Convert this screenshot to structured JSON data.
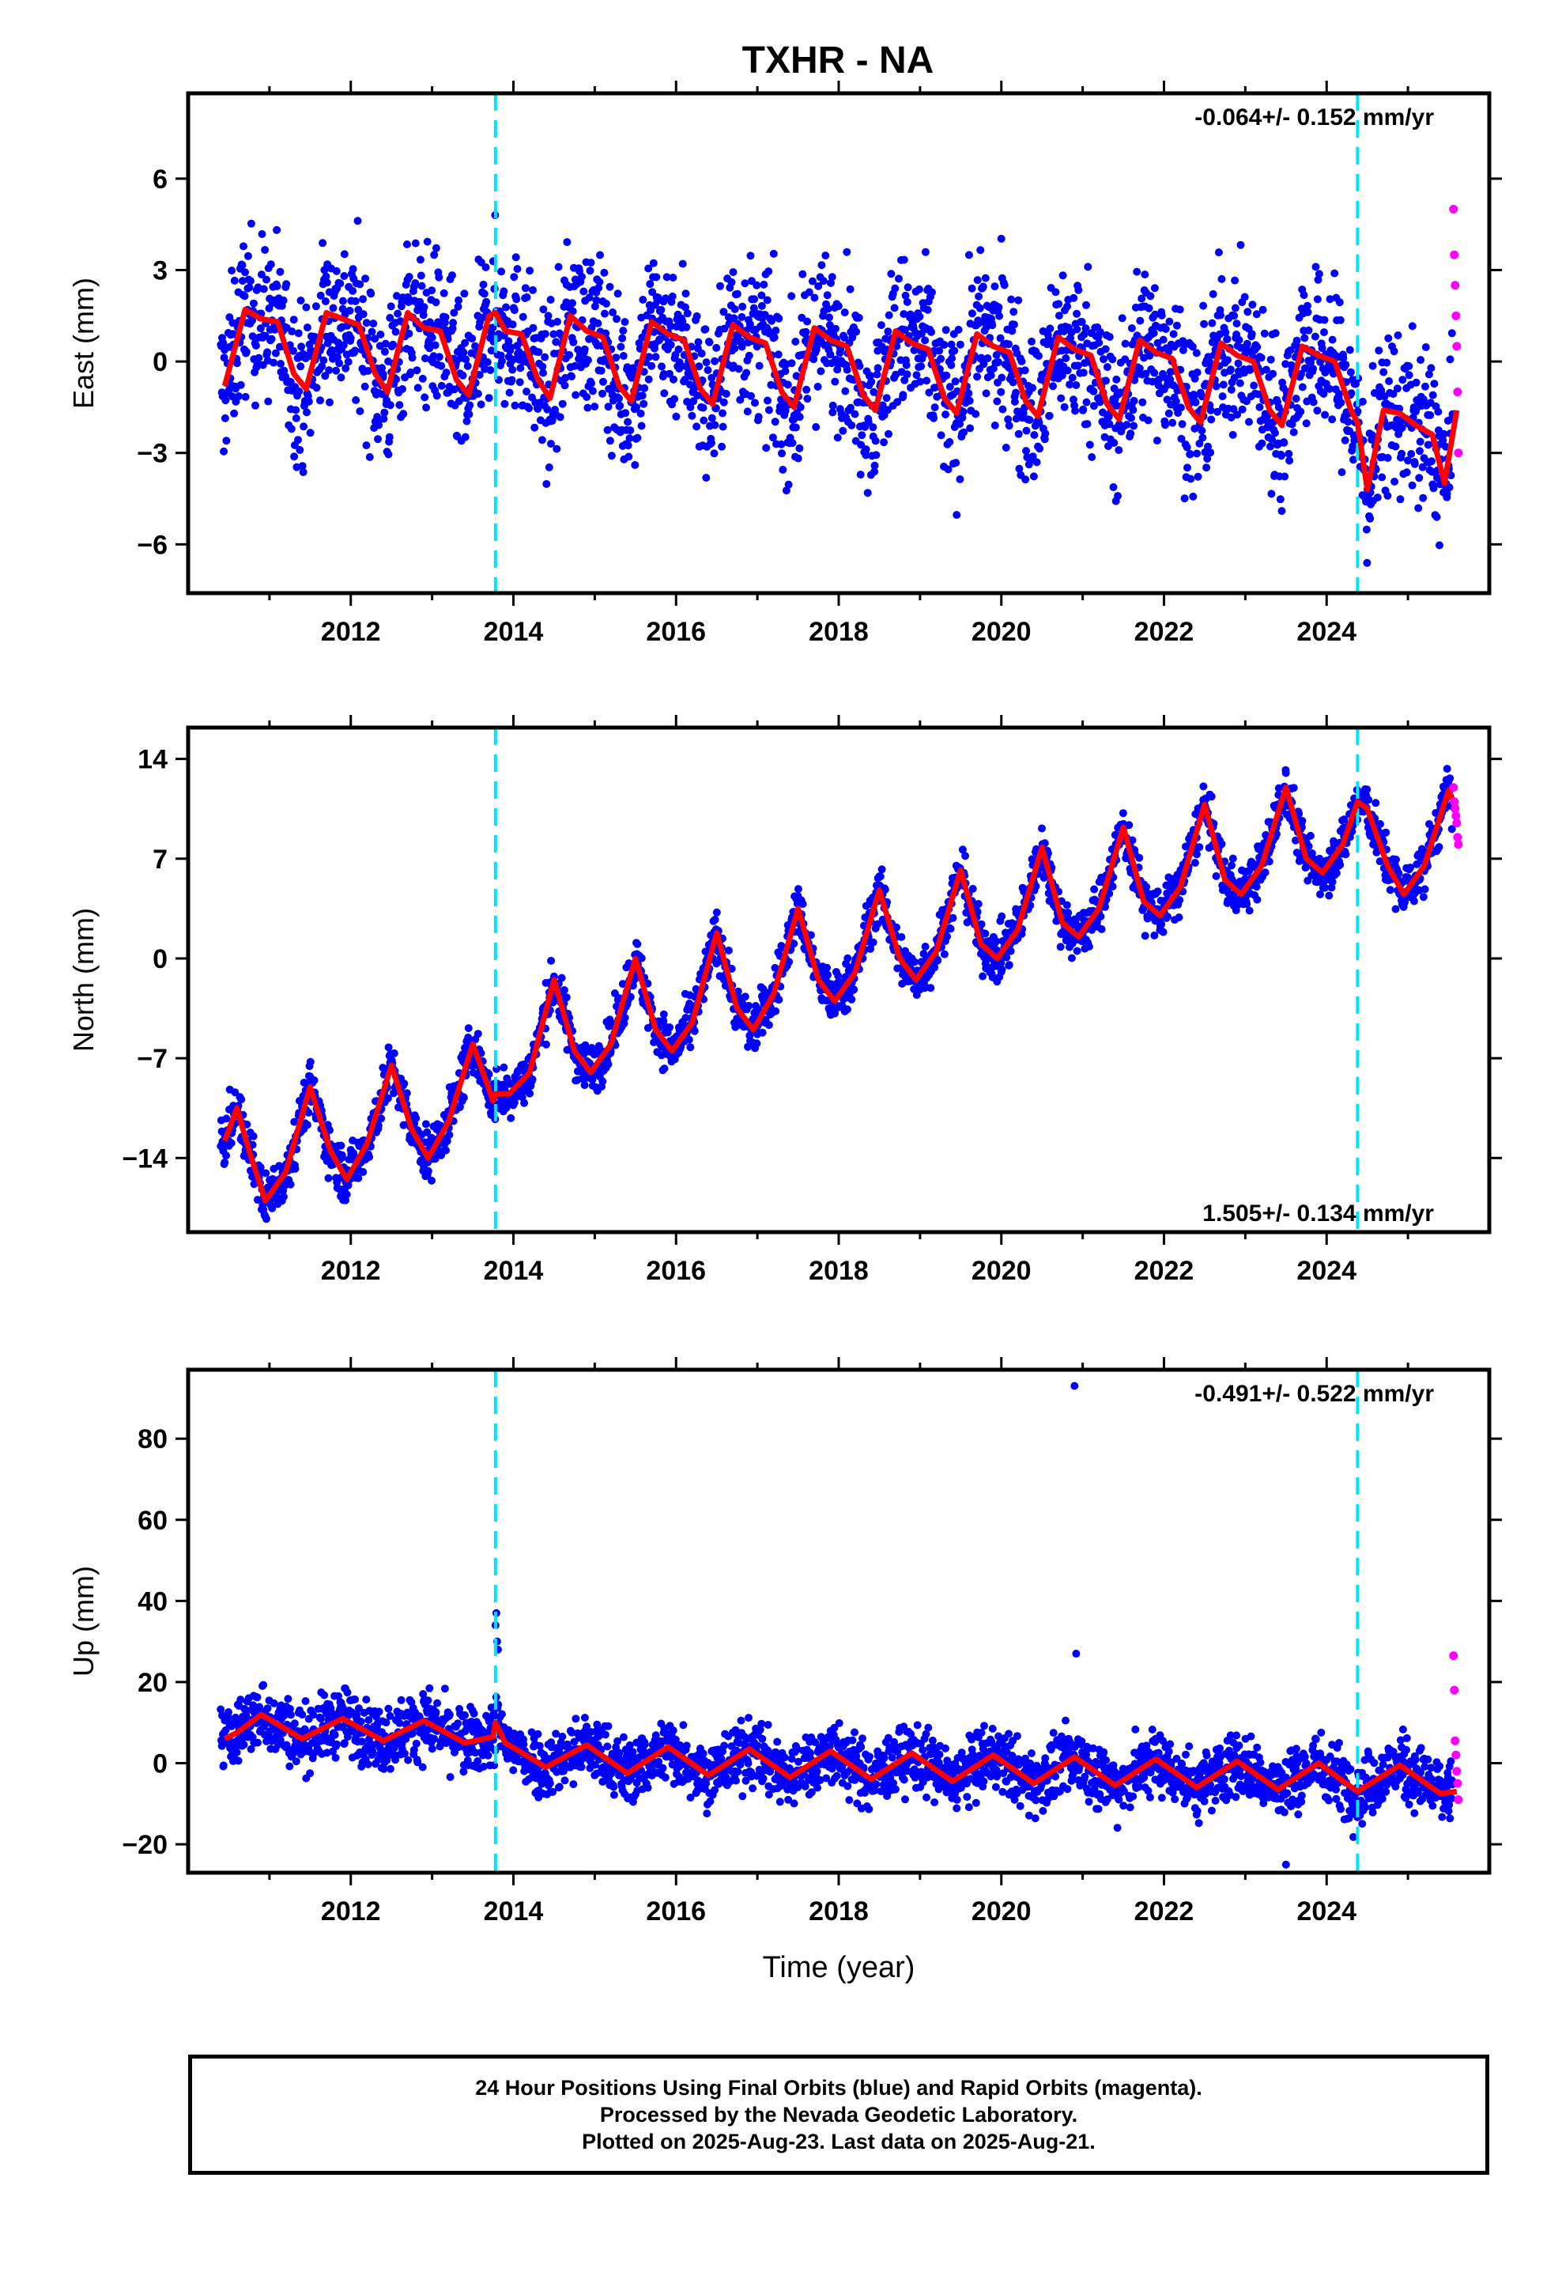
{
  "title": "TXHR - NA",
  "colors": {
    "final_points": "#0000ff",
    "rapid_points": "#ff00ff",
    "model": "#ff0000",
    "event_lines": "#00e5ff",
    "axes": "#000000"
  },
  "footer": {
    "line1": "24 Hour Positions Using Final Orbits (blue) and Rapid Orbits (magenta).",
    "line2": "Processed by the Nevada Geodetic Laboratory.",
    "line3": "Plotted on 2025-Aug-23. Last data on 2025-Aug-21."
  },
  "chart_data": [
    {
      "type": "scatter",
      "component": "East",
      "ylabel": "East (mm)",
      "xlabel": "",
      "xlim": [
        2010.0,
        2026.0
      ],
      "ylim": [
        -7.6,
        8.8
      ],
      "yticks": [
        -6,
        -3,
        0,
        3,
        6
      ],
      "yticklabels": [
        "−6",
        "−3",
        "0",
        "3",
        "6"
      ],
      "xticks": [
        2012,
        2014,
        2016,
        2018,
        2020,
        2022,
        2024
      ],
      "xticklabels": [
        "2012",
        "2014",
        "2016",
        "2018",
        "2020",
        "2022",
        "2024"
      ],
      "rate_label": "-0.064+/- 0.152 mm/yr",
      "rate_label_position": "top-right",
      "event_lines": [
        2013.78,
        2024.38
      ],
      "series": [
        {
          "kind": "model",
          "x": [
            2010.45,
            2010.7,
            2010.9,
            2011.1,
            2011.3,
            2011.45,
            2011.7,
            2011.9,
            2012.1,
            2012.3,
            2012.45,
            2012.7,
            2012.9,
            2013.1,
            2013.3,
            2013.45,
            2013.7,
            2013.78,
            2013.9,
            2014.1,
            2014.3,
            2014.45,
            2014.7,
            2014.9,
            2015.1,
            2015.3,
            2015.45,
            2015.7,
            2015.9,
            2016.1,
            2016.3,
            2016.45,
            2016.7,
            2016.9,
            2017.1,
            2017.3,
            2017.45,
            2017.7,
            2017.9,
            2018.1,
            2018.3,
            2018.45,
            2018.7,
            2018.9,
            2019.1,
            2019.3,
            2019.45,
            2019.7,
            2019.9,
            2020.1,
            2020.3,
            2020.45,
            2020.7,
            2020.9,
            2021.1,
            2021.3,
            2021.45,
            2021.7,
            2021.9,
            2022.1,
            2022.3,
            2022.45,
            2022.7,
            2022.9,
            2023.1,
            2023.3,
            2023.45,
            2023.7,
            2023.9,
            2024.1,
            2024.3,
            2024.38,
            2024.5,
            2024.7,
            2024.9,
            2025.1,
            2025.3,
            2025.45,
            2025.6
          ],
          "y": [
            -0.8,
            1.7,
            1.4,
            1.3,
            -0.4,
            -0.9,
            1.6,
            1.4,
            1.2,
            -0.4,
            -1.0,
            1.6,
            1.1,
            1.0,
            -0.6,
            -1.1,
            1.5,
            1.6,
            1.0,
            0.9,
            -0.6,
            -1.2,
            1.5,
            1.0,
            0.8,
            -0.8,
            -1.3,
            1.3,
            0.9,
            0.7,
            -0.9,
            -1.4,
            1.2,
            0.8,
            0.6,
            -1.0,
            -1.5,
            1.1,
            0.7,
            0.5,
            -1.1,
            -1.6,
            1.0,
            0.6,
            0.4,
            -1.2,
            -1.7,
            0.9,
            0.5,
            0.3,
            -1.3,
            -1.8,
            0.8,
            0.4,
            0.2,
            -1.4,
            -1.9,
            0.7,
            0.3,
            0.1,
            -1.5,
            -2.0,
            0.6,
            0.2,
            0.0,
            -1.6,
            -2.1,
            0.5,
            0.2,
            0.0,
            -1.6,
            -2.0,
            -4.2,
            -1.6,
            -1.7,
            -2.1,
            -2.4,
            -4.0,
            -1.6
          ]
        },
        {
          "kind": "final_orbit_points",
          "description_free": true,
          "x_range": [
            2010.4,
            2025.55
          ],
          "noise_mm": 1.3
        },
        {
          "kind": "rapid_orbit_points",
          "x": [
            2025.56,
            2025.57,
            2025.58,
            2025.59,
            2025.6,
            2025.61,
            2025.62
          ],
          "y": [
            5.0,
            3.5,
            2.5,
            1.5,
            0.5,
            -1.0,
            -3.0
          ]
        }
      ]
    },
    {
      "type": "scatter",
      "component": "North",
      "ylabel": "North (mm)",
      "xlabel": "",
      "xlim": [
        2010.0,
        2026.0
      ],
      "ylim": [
        -19.2,
        16.2
      ],
      "yticks": [
        -14,
        -7,
        0,
        7,
        14
      ],
      "yticklabels": [
        "−14",
        "−7",
        "0",
        "7",
        "14"
      ],
      "xticks": [
        2012,
        2014,
        2016,
        2018,
        2020,
        2022,
        2024
      ],
      "xticklabels": [
        "2012",
        "2014",
        "2016",
        "2018",
        "2020",
        "2022",
        "2024"
      ],
      "rate_label": "1.505+/- 0.134 mm/yr",
      "rate_label_position": "bottom-right",
      "event_lines": [
        2013.78,
        2024.38
      ],
      "series": [
        {
          "kind": "model",
          "x": [
            2010.45,
            2010.6,
            2010.75,
            2010.95,
            2011.2,
            2011.5,
            2011.75,
            2011.95,
            2012.2,
            2012.5,
            2012.75,
            2012.95,
            2013.2,
            2013.5,
            2013.75,
            2013.78,
            2013.95,
            2014.2,
            2014.5,
            2014.75,
            2014.95,
            2015.2,
            2015.5,
            2015.75,
            2015.95,
            2016.2,
            2016.5,
            2016.75,
            2016.95,
            2017.2,
            2017.5,
            2017.75,
            2017.95,
            2018.2,
            2018.5,
            2018.75,
            2018.95,
            2019.2,
            2019.5,
            2019.75,
            2019.95,
            2020.2,
            2020.5,
            2020.75,
            2020.95,
            2021.2,
            2021.5,
            2021.75,
            2021.95,
            2022.2,
            2022.5,
            2022.75,
            2022.95,
            2023.2,
            2023.5,
            2023.75,
            2023.95,
            2024.2,
            2024.38,
            2024.5,
            2024.75,
            2024.95,
            2025.2,
            2025.5,
            2025.6
          ],
          "y": [
            -12.8,
            -10.5,
            -13.5,
            -17.0,
            -15.0,
            -9.0,
            -13.5,
            -15.5,
            -13.0,
            -7.5,
            -12.0,
            -14.0,
            -11.5,
            -6.0,
            -10.0,
            -9.5,
            -9.5,
            -8.0,
            -1.5,
            -6.5,
            -8.0,
            -6.0,
            0.0,
            -5.0,
            -6.5,
            -4.5,
            1.8,
            -3.5,
            -5.0,
            -2.5,
            3.5,
            -1.5,
            -3.0,
            -1.0,
            4.8,
            0.0,
            -1.5,
            0.5,
            6.2,
            1.0,
            0.0,
            2.0,
            7.8,
            2.5,
            1.5,
            3.5,
            9.2,
            4.0,
            3.0,
            5.0,
            10.8,
            5.5,
            4.5,
            6.5,
            12.0,
            7.0,
            6.0,
            8.0,
            11.0,
            10.5,
            6.5,
            4.5,
            6.5,
            11.8,
            10.5
          ]
        },
        {
          "kind": "final_orbit_points",
          "x_range": [
            2010.4,
            2025.55
          ],
          "noise_mm": 0.9
        },
        {
          "kind": "rapid_orbit_points",
          "x": [
            2025.56,
            2025.57,
            2025.58,
            2025.59,
            2025.6,
            2025.61,
            2025.62
          ],
          "y": [
            12.0,
            11.0,
            10.5,
            10.0,
            9.5,
            8.5,
            8.0
          ]
        }
      ]
    },
    {
      "type": "scatter",
      "component": "Up",
      "ylabel": "Up (mm)",
      "xlabel": "Time (year)",
      "xlim": [
        2010.0,
        2026.0
      ],
      "ylim": [
        -27,
        97
      ],
      "yticks": [
        -20,
        0,
        20,
        40,
        60,
        80
      ],
      "yticklabels": [
        "−20",
        "0",
        "20",
        "40",
        "60",
        "80"
      ],
      "xticks": [
        2012,
        2014,
        2016,
        2018,
        2020,
        2022,
        2024
      ],
      "xticklabels": [
        "2012",
        "2014",
        "2016",
        "2018",
        "2020",
        "2022",
        "2024"
      ],
      "rate_label": "-0.491+/- 0.522 mm/yr",
      "rate_label_position": "top-right",
      "event_lines": [
        2013.78,
        2024.38
      ],
      "series": [
        {
          "kind": "model",
          "x": [
            2010.45,
            2010.6,
            2010.9,
            2011.4,
            2011.9,
            2012.4,
            2012.9,
            2013.4,
            2013.75,
            2013.78,
            2013.9,
            2014.4,
            2014.9,
            2015.4,
            2015.9,
            2016.4,
            2016.9,
            2017.4,
            2017.9,
            2018.4,
            2018.9,
            2019.4,
            2019.9,
            2020.4,
            2020.9,
            2021.4,
            2021.9,
            2022.4,
            2022.9,
            2023.4,
            2023.9,
            2024.38,
            2024.9,
            2025.4,
            2025.6
          ],
          "y": [
            6.0,
            7.5,
            12.0,
            6.0,
            11.0,
            5.5,
            10.5,
            5.0,
            6.5,
            10.0,
            5.0,
            -1.0,
            4.5,
            -2.5,
            4.0,
            -3.0,
            3.5,
            -3.5,
            3.0,
            -4.0,
            2.5,
            -4.5,
            2.0,
            -5.0,
            1.5,
            -5.5,
            1.0,
            -6.0,
            0.5,
            -6.5,
            0.0,
            -7.0,
            -0.5,
            -7.5,
            -7.0
          ]
        },
        {
          "kind": "final_orbit_points",
          "x_range": [
            2010.4,
            2025.55
          ],
          "noise_mm": 4.0
        },
        {
          "kind": "outliers",
          "x": [
            2013.78,
            2013.79,
            2013.8,
            2013.81,
            2020.9,
            2020.92,
            2023.5
          ],
          "y": [
            34.0,
            37.0,
            30.0,
            28.0,
            93.0,
            27.0,
            -25.0
          ]
        },
        {
          "kind": "rapid_orbit_points",
          "x": [
            2025.56,
            2025.57,
            2025.58,
            2025.59,
            2025.6,
            2025.61,
            2025.62
          ],
          "y": [
            26.5,
            18.0,
            5.5,
            2.0,
            -2.0,
            -5.0,
            -9.0
          ]
        }
      ]
    }
  ]
}
